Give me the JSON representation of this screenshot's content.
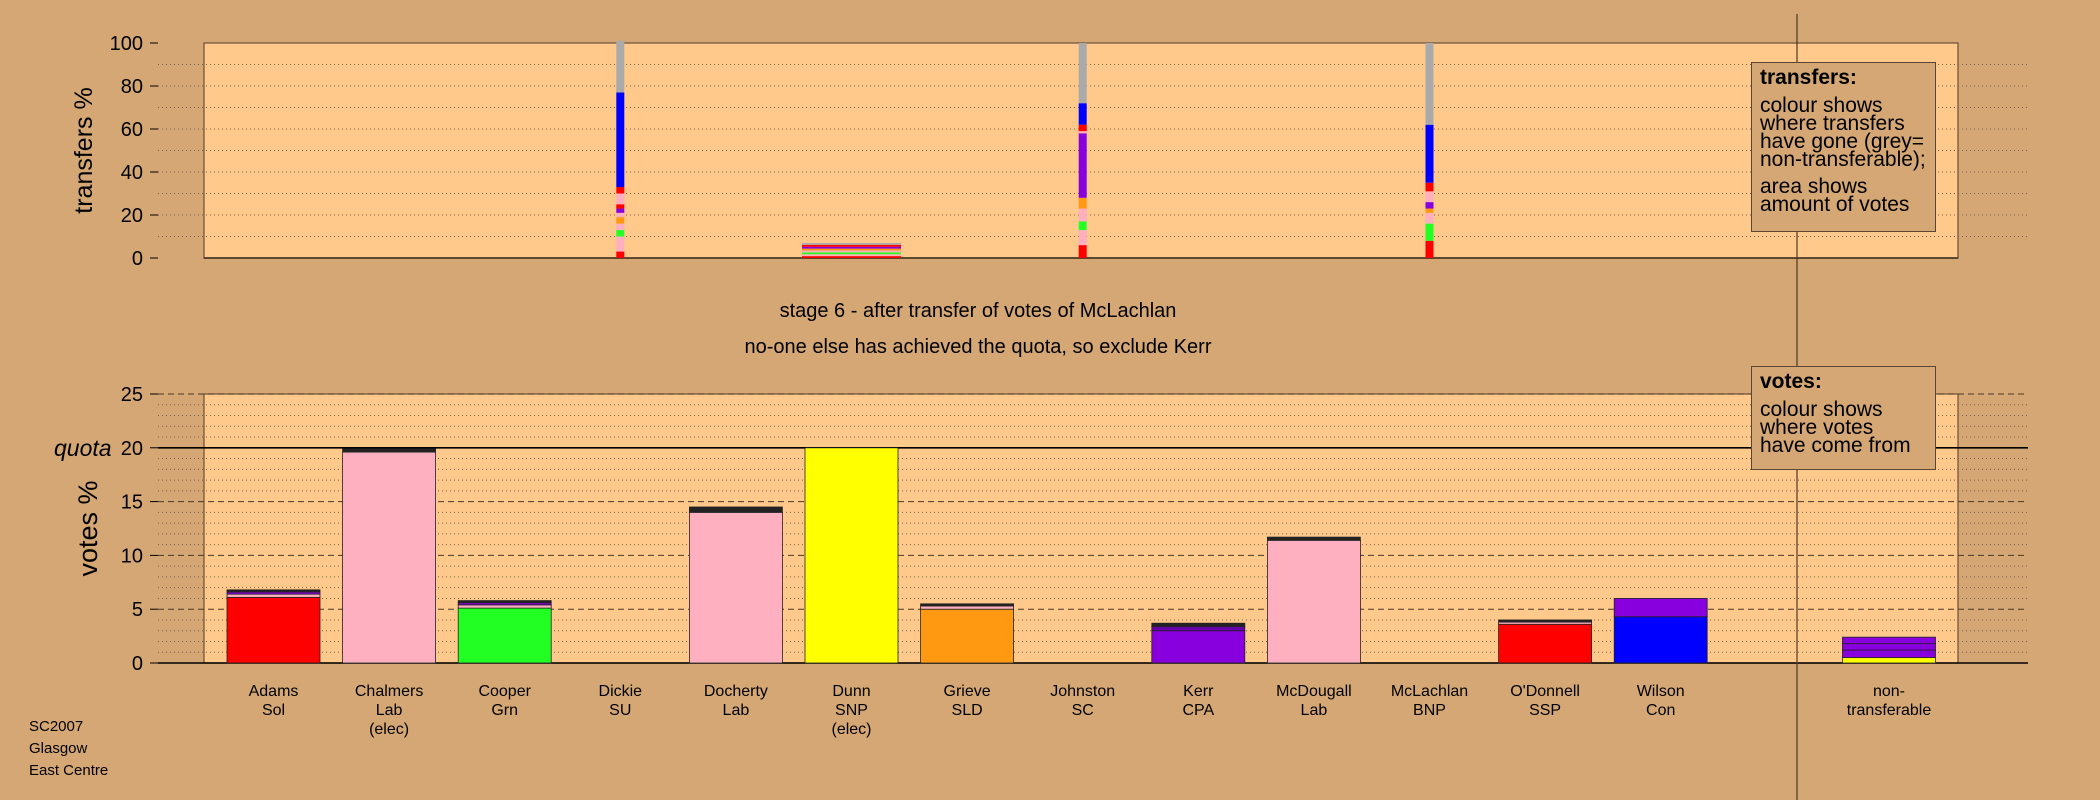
{
  "stage": {
    "title": "stage 6 - after transfer of votes of McLachlan",
    "subtitle": "no-one else has achieved the quota, so exclude Kerr"
  },
  "transfers_note": {
    "title": "transfers:",
    "lines1": [
      "colour shows",
      "where transfers",
      "have gone (grey=",
      "non-transferable);"
    ],
    "lines2": [
      "area shows",
      "amount of votes"
    ]
  },
  "votes_note": {
    "title": "votes:",
    "lines": [
      "colour shows",
      "where votes",
      "have come from"
    ]
  },
  "footer": [
    "SC2007",
    "Glasgow",
    "East Centre"
  ],
  "colors": {
    "background": "#d4a774",
    "plot": "#ffc98b",
    "Sol": "#ff0000",
    "Lab": "#ffb0c0",
    "Grn": "#22ff22",
    "SNP": "#ffff00",
    "SLD": "#ff9911",
    "CPA": "#8800dd",
    "SSP": "#ff0000",
    "Con": "#0000ff",
    "nontransferable": "#aaaaaa"
  },
  "chart_data": [
    {
      "type": "bar",
      "name": "transfers",
      "ylabel": "transfers %",
      "ylim": [
        0,
        100
      ],
      "yticks": [
        0,
        20,
        40,
        60,
        80,
        100
      ],
      "grid": "dotted",
      "transfers": [
        {
          "from": "Dickie",
          "segments": [
            {
              "color": "#ff0000",
              "value": 3
            },
            {
              "color": "#ffb0c0",
              "value": 7
            },
            {
              "color": "#22ff22",
              "value": 3
            },
            {
              "color": "#ffb0c0",
              "value": 3
            },
            {
              "color": "#ff9911",
              "value": 3
            },
            {
              "color": "#ffb0c0",
              "value": 2
            },
            {
              "color": "#8800dd",
              "value": 2
            },
            {
              "color": "#ff0000",
              "value": 2
            },
            {
              "color": "#ffb0c0",
              "value": 5
            },
            {
              "color": "#ff0000",
              "value": 3
            },
            {
              "color": "#0000ff",
              "value": 44
            },
            {
              "color": "#aaaaaa",
              "value": 24
            }
          ]
        },
        {
          "from": "Dunn",
          "segments": [
            {
              "color": "#ff0000",
              "value": 1
            },
            {
              "color": "#ffb0c0",
              "value": 1
            },
            {
              "color": "#22ff22",
              "value": 1
            },
            {
              "color": "#ffb0c0",
              "value": 1
            },
            {
              "color": "#ff9911",
              "value": 1
            },
            {
              "color": "#8800dd",
              "value": 1
            },
            {
              "color": "#ff0000",
              "value": 1
            },
            {
              "color": "#aaaaaa",
              "value": 1
            }
          ]
        },
        {
          "from": "Johnston",
          "segments": [
            {
              "color": "#ff0000",
              "value": 6
            },
            {
              "color": "#ffb0c0",
              "value": 7
            },
            {
              "color": "#22ff22",
              "value": 4
            },
            {
              "color": "#ffb0c0",
              "value": 6
            },
            {
              "color": "#ff9911",
              "value": 5
            },
            {
              "color": "#8800dd",
              "value": 30
            },
            {
              "color": "#ffb0c0",
              "value": 1
            },
            {
              "color": "#ff0000",
              "value": 3
            },
            {
              "color": "#0000ff",
              "value": 10
            },
            {
              "color": "#aaaaaa",
              "value": 28
            }
          ]
        },
        {
          "from": "McLachlan",
          "segments": [
            {
              "color": "#ff0000",
              "value": 8
            },
            {
              "color": "#22ff22",
              "value": 8
            },
            {
              "color": "#ffb0c0",
              "value": 5
            },
            {
              "color": "#ff9911",
              "value": 2
            },
            {
              "color": "#8800dd",
              "value": 3
            },
            {
              "color": "#ffb0c0",
              "value": 5
            },
            {
              "color": "#ff0000",
              "value": 4
            },
            {
              "color": "#0000ff",
              "value": 27
            },
            {
              "color": "#aaaaaa",
              "value": 38
            }
          ]
        }
      ]
    },
    {
      "type": "bar",
      "name": "votes",
      "ylabel": "votes %",
      "ylim": [
        0,
        25
      ],
      "yticks": [
        0,
        5,
        10,
        15,
        20,
        25
      ],
      "quota": 20,
      "quota_label": "quota",
      "grid": "dashed",
      "categories": [
        {
          "name": "Adams",
          "party": "Sol",
          "elec": "",
          "segments": [
            {
              "color": "#ff0000",
              "value": 6.1
            },
            {
              "color": "#ffb0c0",
              "value": 0.3
            },
            {
              "color": "#8800dd",
              "value": 0.2
            },
            {
              "color": "#222222",
              "value": 0.2
            }
          ]
        },
        {
          "name": "Chalmers",
          "party": "Lab",
          "elec": "(elec)",
          "segments": [
            {
              "color": "#ffb0c0",
              "value": 19.6
            },
            {
              "color": "#222222",
              "value": 0.3
            }
          ]
        },
        {
          "name": "Cooper",
          "party": "Grn",
          "elec": "",
          "segments": [
            {
              "color": "#22ff22",
              "value": 5.1
            },
            {
              "color": "#ffb0c0",
              "value": 0.3
            },
            {
              "color": "#8800dd",
              "value": 0.2
            },
            {
              "color": "#222222",
              "value": 0.2
            }
          ]
        },
        {
          "name": "Dickie",
          "party": "SU",
          "elec": "",
          "segments": []
        },
        {
          "name": "Docherty",
          "party": "Lab",
          "elec": "",
          "segments": [
            {
              "color": "#ffb0c0",
              "value": 14.0
            },
            {
              "color": "#222222",
              "value": 0.5
            }
          ]
        },
        {
          "name": "Dunn",
          "party": "SNP",
          "elec": "(elec)",
          "segments": [
            {
              "color": "#ffff00",
              "value": 20.0
            }
          ]
        },
        {
          "name": "Grieve",
          "party": "SLD",
          "elec": "",
          "segments": [
            {
              "color": "#ff9911",
              "value": 5.0
            },
            {
              "color": "#ffb0c0",
              "value": 0.3
            },
            {
              "color": "#222222",
              "value": 0.2
            }
          ]
        },
        {
          "name": "Johnston",
          "party": "SC",
          "elec": "",
          "segments": []
        },
        {
          "name": "Kerr",
          "party": "CPA",
          "elec": "",
          "segments": [
            {
              "color": "#8800dd",
              "value": 3.0
            },
            {
              "color": "#6600aa",
              "value": 0.4
            },
            {
              "color": "#222222",
              "value": 0.3
            }
          ]
        },
        {
          "name": "McDougall",
          "party": "Lab",
          "elec": "",
          "segments": [
            {
              "color": "#ffb0c0",
              "value": 11.4
            },
            {
              "color": "#222222",
              "value": 0.3
            }
          ]
        },
        {
          "name": "McLachlan",
          "party": "BNP",
          "elec": "",
          "segments": []
        },
        {
          "name": "O'Donnell",
          "party": "SSP",
          "elec": "",
          "segments": [
            {
              "color": "#ff0000",
              "value": 3.6
            },
            {
              "color": "#ffb0c0",
              "value": 0.2
            },
            {
              "color": "#222222",
              "value": 0.2
            }
          ]
        },
        {
          "name": "Wilson",
          "party": "Con",
          "elec": "",
          "segments": [
            {
              "color": "#0000ff",
              "value": 4.3
            },
            {
              "color": "#8800dd",
              "value": 1.7
            }
          ]
        },
        {
          "name": "non-",
          "party": "transferable",
          "elec": "",
          "segments": [
            {
              "color": "#ffff00",
              "value": 0.5
            },
            {
              "color": "#8800dd",
              "value": 0.7
            },
            {
              "color": "#8800dd",
              "value": 0.6
            },
            {
              "color": "#8800dd",
              "value": 0.6
            }
          ]
        }
      ]
    }
  ]
}
